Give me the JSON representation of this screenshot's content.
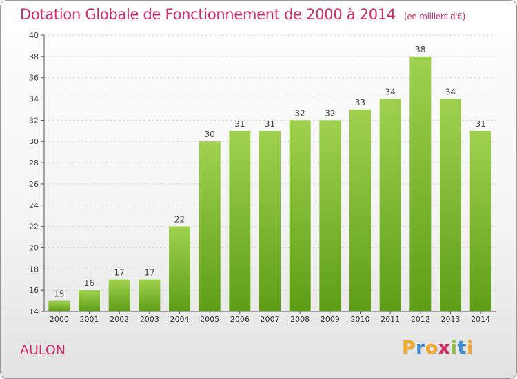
{
  "title": "Dotation Globale de Fonctionnement de 2000 à 2014",
  "unit_label": "(en milliers d'€)",
  "commune": "AULON",
  "logo": {
    "text": "Proxiti",
    "letters": [
      "P",
      "r",
      "o",
      "x",
      "i",
      "t",
      "i"
    ],
    "colors": [
      "#f7a823",
      "#3b8fd6",
      "#f7a823",
      "#d42a6a",
      "#8cc63f",
      "#3b8fd6",
      "#f7a823"
    ]
  },
  "colors": {
    "accent": "#d42a6a",
    "bar_top": "#9fd14f",
    "bar_bottom": "#5e9e16"
  },
  "chart_data": {
    "type": "bar",
    "title": "Dotation Globale de Fonctionnement de 2000 à 2014",
    "xlabel": "",
    "ylabel": "",
    "categories": [
      "2000",
      "2001",
      "2002",
      "2003",
      "2004",
      "2005",
      "2006",
      "2007",
      "2008",
      "2009",
      "2010",
      "2011",
      "2012",
      "2013",
      "2014"
    ],
    "values": [
      15,
      16,
      17,
      17,
      22,
      30,
      31,
      31,
      32,
      32,
      33,
      34,
      38,
      34,
      31
    ],
    "ylim": [
      14,
      40
    ],
    "yticks": [
      14,
      16,
      18,
      20,
      22,
      24,
      26,
      28,
      30,
      32,
      34,
      36,
      38,
      40
    ],
    "grid": true,
    "data_labels": true
  }
}
